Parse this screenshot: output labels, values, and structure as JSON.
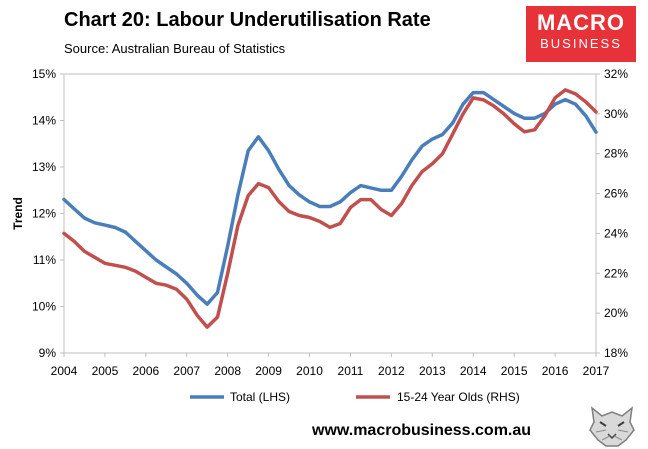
{
  "header": {
    "title": "Chart 20: Labour Underutilisation Rate",
    "source": "Source: Australian Bureau of Statistics"
  },
  "logo": {
    "line1": "MACRO",
    "line2": "BUSINESS",
    "color": "#e8323a"
  },
  "footer": {
    "url": "www.macrobusiness.com.au",
    "icon": "wolf-icon"
  },
  "chart_data": {
    "type": "line",
    "title": "Chart 20: Labour Underutilisation Rate",
    "xlabel": "",
    "ylabel": "Trend",
    "xlim": [
      2004,
      2017
    ],
    "x_ticks": [
      "2004",
      "2005",
      "2006",
      "2007",
      "2008",
      "2009",
      "2010",
      "2011",
      "2012",
      "2013",
      "2014",
      "2015",
      "2016",
      "2017"
    ],
    "y_left": {
      "min": 9,
      "max": 15,
      "ticks": [
        "9%",
        "10%",
        "11%",
        "12%",
        "13%",
        "14%",
        "15%"
      ]
    },
    "y_right": {
      "min": 18,
      "max": 32,
      "ticks": [
        "18%",
        "20%",
        "22%",
        "24%",
        "26%",
        "28%",
        "30%",
        "32%"
      ]
    },
    "gridlines": false,
    "legend_position": "bottom",
    "series": [
      {
        "name": "Total (LHS)",
        "axis": "left",
        "color": "#4a7ebb",
        "x": [
          2004.0,
          2004.25,
          2004.5,
          2004.75,
          2005.0,
          2005.25,
          2005.5,
          2005.75,
          2006.0,
          2006.25,
          2006.5,
          2006.75,
          2007.0,
          2007.25,
          2007.5,
          2007.75,
          2008.0,
          2008.25,
          2008.5,
          2008.75,
          2009.0,
          2009.25,
          2009.5,
          2009.75,
          2010.0,
          2010.25,
          2010.5,
          2010.75,
          2011.0,
          2011.25,
          2011.5,
          2011.75,
          2012.0,
          2012.25,
          2012.5,
          2012.75,
          2013.0,
          2013.25,
          2013.5,
          2013.75,
          2014.0,
          2014.25,
          2014.5,
          2014.75,
          2015.0,
          2015.25,
          2015.5,
          2015.75,
          2016.0,
          2016.25,
          2016.5,
          2016.75,
          2017.0
        ],
        "values": [
          12.3,
          12.1,
          11.9,
          11.8,
          11.75,
          11.7,
          11.6,
          11.4,
          11.2,
          11.0,
          10.85,
          10.7,
          10.5,
          10.25,
          10.05,
          10.3,
          11.3,
          12.4,
          13.35,
          13.65,
          13.35,
          12.95,
          12.6,
          12.4,
          12.25,
          12.15,
          12.15,
          12.25,
          12.45,
          12.6,
          12.55,
          12.5,
          12.5,
          12.8,
          13.15,
          13.45,
          13.6,
          13.7,
          13.95,
          14.35,
          14.6,
          14.6,
          14.45,
          14.3,
          14.15,
          14.05,
          14.05,
          14.15,
          14.35,
          14.45,
          14.35,
          14.1,
          13.75
        ]
      },
      {
        "name": "15-24 Year Olds (RHS)",
        "axis": "right",
        "color": "#c0504d",
        "x": [
          2004.0,
          2004.25,
          2004.5,
          2004.75,
          2005.0,
          2005.25,
          2005.5,
          2005.75,
          2006.0,
          2006.25,
          2006.5,
          2006.75,
          2007.0,
          2007.25,
          2007.5,
          2007.75,
          2008.0,
          2008.25,
          2008.5,
          2008.75,
          2009.0,
          2009.25,
          2009.5,
          2009.75,
          2010.0,
          2010.25,
          2010.5,
          2010.75,
          2011.0,
          2011.25,
          2011.5,
          2011.75,
          2012.0,
          2012.25,
          2012.5,
          2012.75,
          2013.0,
          2013.25,
          2013.5,
          2013.75,
          2014.0,
          2014.25,
          2014.5,
          2014.75,
          2015.0,
          2015.25,
          2015.5,
          2015.75,
          2016.0,
          2016.25,
          2016.5,
          2016.75,
          2017.0
        ],
        "values": [
          24.0,
          23.6,
          23.1,
          22.8,
          22.5,
          22.4,
          22.3,
          22.1,
          21.8,
          21.5,
          21.4,
          21.2,
          20.7,
          19.9,
          19.3,
          19.8,
          22.0,
          24.4,
          25.9,
          26.5,
          26.3,
          25.6,
          25.1,
          24.9,
          24.8,
          24.6,
          24.3,
          24.5,
          25.3,
          25.7,
          25.7,
          25.2,
          24.9,
          25.5,
          26.4,
          27.1,
          27.5,
          28.0,
          29.0,
          30.0,
          30.8,
          30.7,
          30.4,
          30.0,
          29.5,
          29.1,
          29.2,
          29.9,
          30.8,
          31.2,
          31.0,
          30.6,
          30.1
        ]
      }
    ]
  }
}
